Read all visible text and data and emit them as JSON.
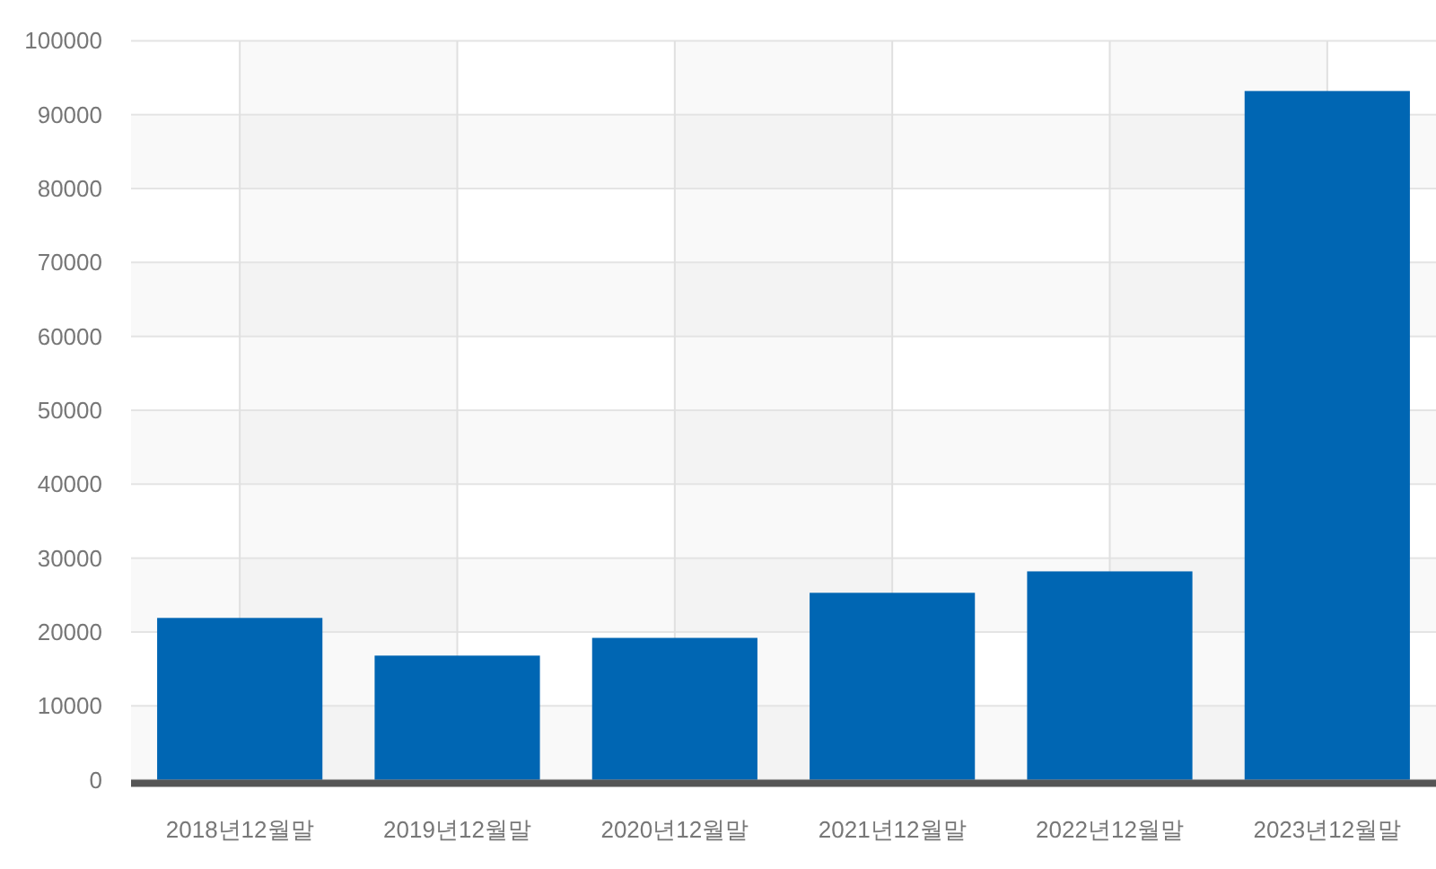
{
  "chart_data": {
    "type": "bar",
    "categories": [
      "2018년12월말",
      "2019년12월말",
      "2020년12월말",
      "2021년12월말",
      "2022년12월말",
      "2023년12월말"
    ],
    "values": [
      21900,
      16800,
      19200,
      25300,
      28200,
      93200
    ],
    "color": "#0066b3",
    "ylim": [
      0,
      100000
    ],
    "yticks": [
      0,
      10000,
      20000,
      30000,
      40000,
      50000,
      60000,
      70000,
      80000,
      90000,
      100000
    ],
    "grid": true
  }
}
